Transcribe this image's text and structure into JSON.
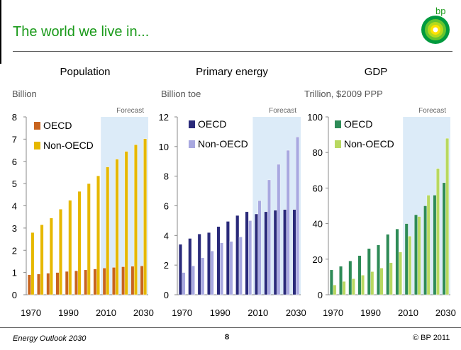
{
  "slide": {
    "title": "The world we live in...",
    "logo_text": "bp",
    "footer_left": "Energy Outlook 2030",
    "page_number": "8",
    "copyright": "© BP 2011"
  },
  "chart_data": [
    {
      "type": "bar",
      "title": "Population",
      "unit_label": "Billion",
      "forecast_label": "Forecast",
      "forecast_from": 2010,
      "x": [
        1970,
        1975,
        1980,
        1985,
        1990,
        1995,
        2000,
        2005,
        2010,
        2015,
        2020,
        2025,
        2030
      ],
      "xticks": [
        1970,
        1990,
        2010,
        2030
      ],
      "ylim": [
        0,
        8
      ],
      "yticks": [
        0,
        1,
        2,
        3,
        4,
        5,
        6,
        7,
        8
      ],
      "series": [
        {
          "name": "OECD",
          "color": "#c8641e",
          "values": [
            0.9,
            0.93,
            0.97,
            1.0,
            1.05,
            1.08,
            1.12,
            1.16,
            1.2,
            1.23,
            1.26,
            1.28,
            1.3
          ]
        },
        {
          "name": "Non-OECD",
          "color": "#e6b800",
          "values": [
            2.8,
            3.15,
            3.45,
            3.85,
            4.25,
            4.65,
            5.0,
            5.35,
            5.75,
            6.1,
            6.45,
            6.75,
            7.02
          ]
        }
      ],
      "legend": "top-left"
    },
    {
      "type": "bar",
      "title": "Primary energy",
      "unit_label": "Billion toe",
      "forecast_label": "Forecast",
      "forecast_from": 2010,
      "x": [
        1970,
        1975,
        1980,
        1985,
        1990,
        1995,
        2000,
        2005,
        2010,
        2015,
        2020,
        2025,
        2030
      ],
      "xticks": [
        1970,
        1990,
        2010,
        2030
      ],
      "ylim": [
        0,
        12
      ],
      "yticks": [
        0,
        2,
        4,
        6,
        8,
        10,
        12
      ],
      "series": [
        {
          "name": "OECD",
          "color": "#2a2a7a",
          "values": [
            3.4,
            3.8,
            4.1,
            4.2,
            4.6,
            4.95,
            5.35,
            5.6,
            5.45,
            5.6,
            5.7,
            5.75,
            5.75
          ]
        },
        {
          "name": "Non-OECD",
          "color": "#a8a8e0",
          "values": [
            1.5,
            1.95,
            2.5,
            2.95,
            3.5,
            3.6,
            3.9,
            5.0,
            6.35,
            7.75,
            8.8,
            9.75,
            10.65
          ]
        }
      ],
      "legend": "top-left"
    },
    {
      "type": "bar",
      "title": "GDP",
      "unit_label": "Trillion, $2009 PPP",
      "forecast_label": "Forecast",
      "forecast_from": 2010,
      "x": [
        1970,
        1975,
        1980,
        1985,
        1990,
        1995,
        2000,
        2005,
        2010,
        2015,
        2020,
        2025,
        2030
      ],
      "xticks": [
        1970,
        1990,
        2010,
        2030
      ],
      "ylim": [
        0,
        100
      ],
      "yticks": [
        0,
        20,
        40,
        60,
        80,
        100
      ],
      "series": [
        {
          "name": "OECD",
          "color": "#2e8b57",
          "values": [
            14,
            16,
            19,
            22,
            26,
            28,
            34,
            37,
            40,
            45,
            50,
            56,
            63
          ]
        },
        {
          "name": "Non-OECD",
          "color": "#b8d860",
          "values": [
            5.5,
            7.5,
            9,
            11,
            13,
            15,
            18,
            24,
            33,
            44,
            56,
            71,
            88
          ]
        }
      ],
      "legend": "top-left"
    }
  ]
}
